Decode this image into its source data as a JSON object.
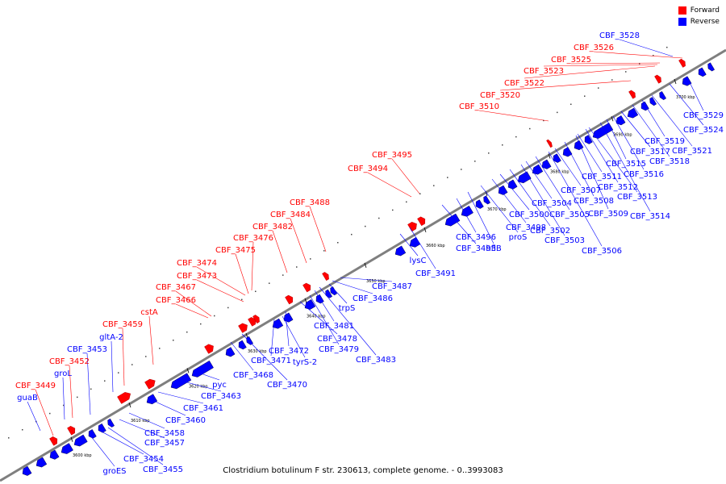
{
  "legend": [
    {
      "label": "Forward",
      "color": "#ff0000"
    },
    {
      "label": "Reverse",
      "color": "#0000ff"
    }
  ],
  "caption": "Clostridium botulinum F str. 230613, complete genome. - 0..3993083",
  "colors": {
    "forward": "#ff0000",
    "reverse": "#0000ff",
    "backbone": "#7f7f7f"
  },
  "ticks": [
    "3600 kbp",
    "3610 kbp",
    "3620 kbp",
    "3630 kbp",
    "3640 kbp",
    "3650 kbp",
    "3660 kbp",
    "3670 kbp",
    "3680 kbp",
    "3690 kbp",
    "3700 kbp"
  ],
  "forward_genes": [
    "CBF_3449",
    "CBF_3452",
    "CBF_3459",
    "cstA",
    "CBF_3466",
    "CBF_3467",
    "CBF_3473",
    "CBF_3474",
    "CBF_3475",
    "CBF_3476",
    "CBF_3482",
    "CBF_3484",
    "CBF_3488",
    "CBF_3494",
    "CBF_3495",
    "CBF_3510",
    "CBF_3520",
    "CBF_3522",
    "CBF_3523",
    "CBF_3525",
    "CBF_3526"
  ],
  "reverse_genes": [
    "guaB",
    "groL",
    "CBF_3453",
    "gltA-2",
    "groES",
    "CBF_3454",
    "CBF_3455",
    "CBF_3457",
    "CBF_3458",
    "CBF_3460",
    "CBF_3461",
    "CBF_3463",
    "pyc",
    "CBF_3468",
    "CBF_3470",
    "CBF_3471",
    "CBF_3472",
    "tyrS-2",
    "CBF_3478",
    "CBF_3479",
    "CBF_3481",
    "CBF_3483",
    "trpS",
    "CBF_3486",
    "CBF_3487",
    "lysC",
    "CBF_3491",
    "CBF_3493",
    "CBF_3496",
    "hflB",
    "proS",
    "CBF_3498",
    "CBF_3500",
    "CBF_3502",
    "CBF_3503",
    "CBF_3504",
    "CBF_3505",
    "CBF_3506",
    "CBF_3507",
    "CBF_3508",
    "CBF_3509",
    "CBF_3511",
    "CBF_3512",
    "CBF_3513",
    "CBF_3514",
    "CBF_3515",
    "CBF_3516",
    "CBF_3517",
    "CBF_3518",
    "CBF_3519",
    "CBF_3521",
    "CBF_3524",
    "CBF_3528",
    "CBF_3529"
  ]
}
